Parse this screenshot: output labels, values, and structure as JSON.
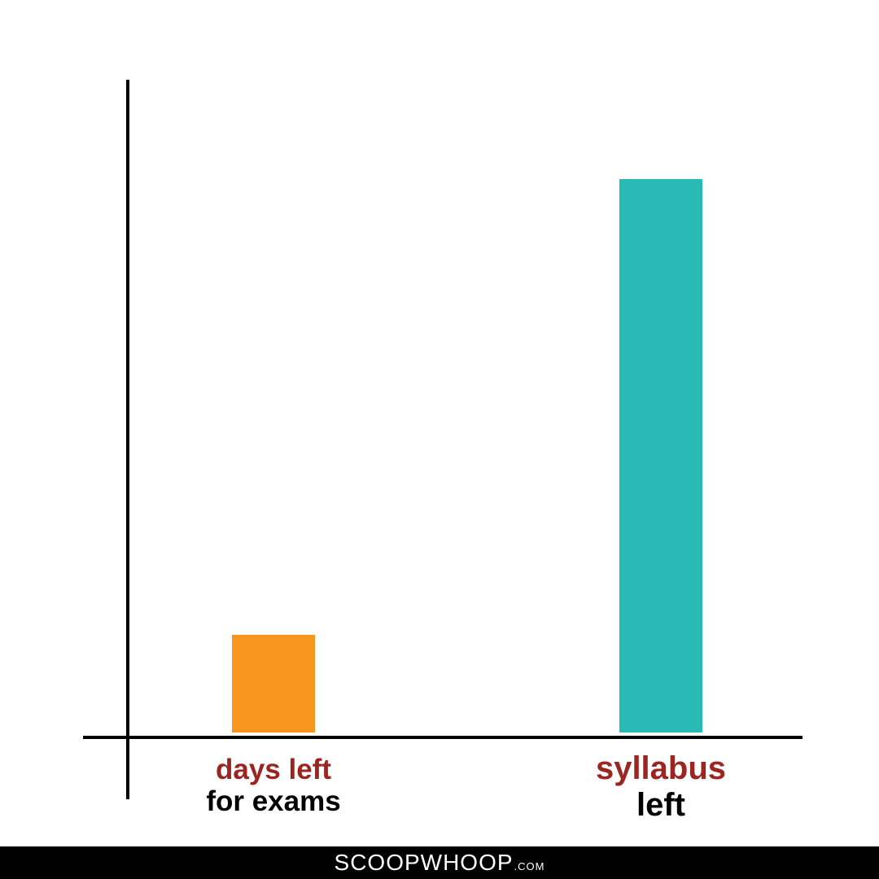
{
  "colors": {
    "bar_orange": "#f7961f",
    "bar_teal": "#29bab5",
    "label_red": "#9b2521",
    "axis": "#000000",
    "footer_bg": "#000000",
    "footer_text": "#ffffff"
  },
  "chart_data": {
    "type": "bar",
    "title": "",
    "xlabel": "",
    "ylabel": "",
    "ylim": [
      0,
      100
    ],
    "grid": false,
    "categories": [
      {
        "line1": "days left",
        "line2": "for exams"
      },
      {
        "line1": "syllabus",
        "line2": "left"
      }
    ],
    "values": [
      15,
      85
    ]
  },
  "footer": {
    "brand": "SCOOPWHOOP",
    "suffix": ".COM"
  }
}
